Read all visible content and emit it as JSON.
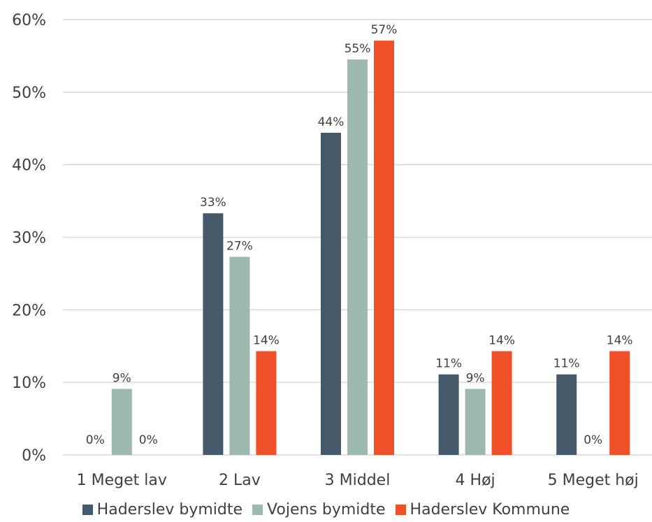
{
  "chart_data": {
    "type": "bar",
    "categories": [
      "1 Meget lav",
      "2 Lav",
      "3 Middel",
      "4 Høj",
      "5 Meget høj"
    ],
    "series": [
      {
        "name": "Haderslev bymidte",
        "color": "#44596a",
        "values": [
          0,
          33.3,
          44.4,
          11.1,
          11.1
        ],
        "labels": [
          "0%",
          "33%",
          "44%",
          "11%",
          "11%"
        ]
      },
      {
        "name": "Vojens bymidte",
        "color": "#9db8ad",
        "values": [
          9.1,
          27.3,
          54.5,
          9.1,
          0
        ],
        "labels": [
          "9%",
          "27%",
          "55%",
          "9%",
          "0%"
        ]
      },
      {
        "name": "Haderslev Kommune",
        "color": "#f05027",
        "values": [
          0,
          14.3,
          57.1,
          14.3,
          14.3
        ],
        "labels": [
          "0%",
          "14%",
          "57%",
          "14%",
          "14%"
        ]
      }
    ],
    "yticks": [
      "0%",
      "10%",
      "20%",
      "30%",
      "40%",
      "50%",
      "60%"
    ],
    "ylim": [
      0,
      60
    ],
    "grid": true,
    "legend": "bottom"
  }
}
